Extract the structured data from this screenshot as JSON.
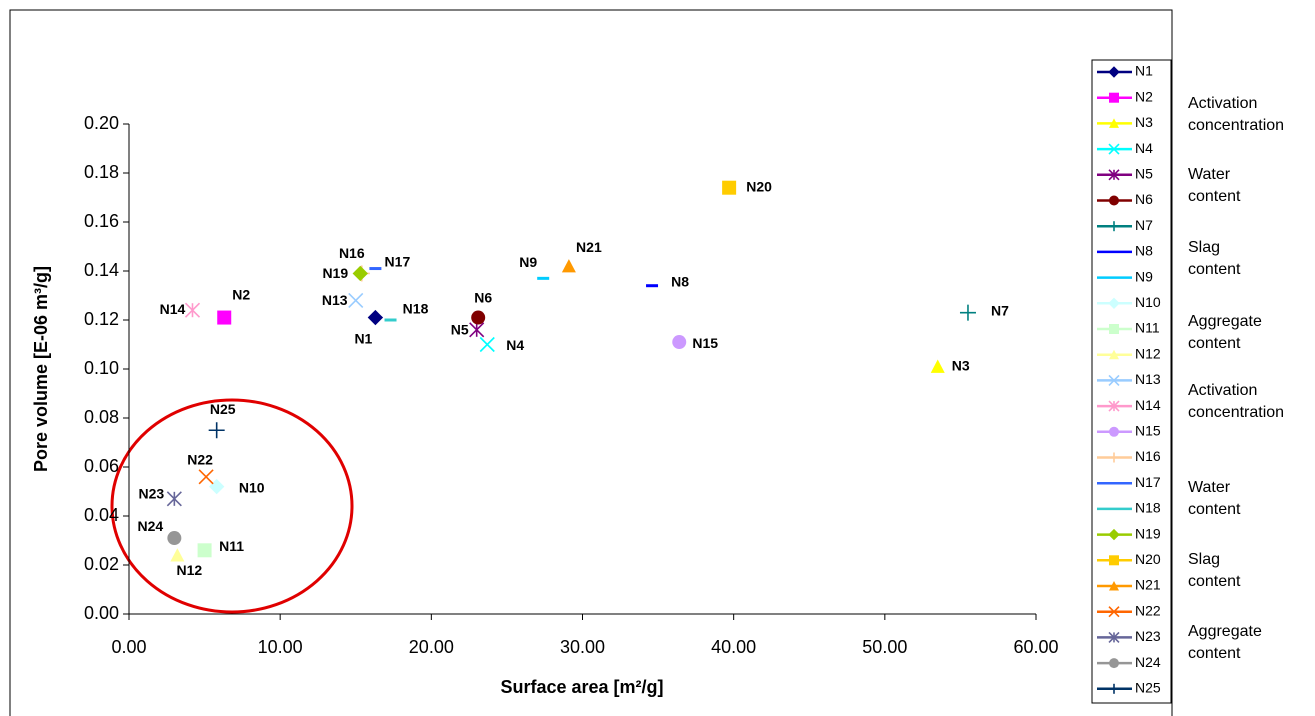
{
  "chart_data": {
    "type": "scatter",
    "xlabel": "Surface area [m²/g]",
    "ylabel": "Pore volume [E-06 m³/g]",
    "xlim": [
      0,
      60
    ],
    "ylim": [
      0,
      0.2
    ],
    "xticks": [
      {
        "value": 0,
        "label": "0.00"
      },
      {
        "value": 10,
        "label": "10.00"
      },
      {
        "value": 20,
        "label": "20.00"
      },
      {
        "value": 30,
        "label": "30.00"
      },
      {
        "value": 40,
        "label": "40.00"
      },
      {
        "value": 50,
        "label": "50.00"
      },
      {
        "value": 60,
        "label": "60.00"
      }
    ],
    "yticks": [
      {
        "value": 0,
        "label": "0.00"
      },
      {
        "value": 0.02,
        "label": "0.02"
      },
      {
        "value": 0.04,
        "label": "0.04"
      },
      {
        "value": 0.06,
        "label": "0.06"
      },
      {
        "value": 0.08,
        "label": "0.08"
      },
      {
        "value": 0.1,
        "label": "0.10"
      },
      {
        "value": 0.12,
        "label": "0.12"
      },
      {
        "value": 0.14,
        "label": "0.14"
      },
      {
        "value": 0.16,
        "label": "0.16"
      },
      {
        "value": 0.18,
        "label": "0.18"
      },
      {
        "value": 0.2,
        "label": "0.20"
      }
    ],
    "grid": false,
    "legend": "right",
    "series": [
      {
        "name": "N1",
        "color": "#000080",
        "marker": "diamond",
        "x": [
          16.3
        ],
        "values": [
          0.121
        ]
      },
      {
        "name": "N2",
        "color": "#ff00ff",
        "marker": "square",
        "x": [
          6.3
        ],
        "values": [
          0.121
        ]
      },
      {
        "name": "N3",
        "color": "#ffff00",
        "marker": "triangle",
        "x": [
          53.5
        ],
        "values": [
          0.101
        ]
      },
      {
        "name": "N4",
        "color": "#00ffff",
        "marker": "x",
        "x": [
          23.7
        ],
        "values": [
          0.11
        ]
      },
      {
        "name": "N5",
        "color": "#800080",
        "marker": "star",
        "x": [
          23.0
        ],
        "values": [
          0.116
        ]
      },
      {
        "name": "N6",
        "color": "#800000",
        "marker": "circle",
        "x": [
          23.1
        ],
        "values": [
          0.121
        ]
      },
      {
        "name": "N7",
        "color": "#008080",
        "marker": "plus",
        "x": [
          55.5
        ],
        "values": [
          0.123
        ]
      },
      {
        "name": "N8",
        "color": "#0000ff",
        "marker": "dash",
        "x": [
          34.6
        ],
        "values": [
          0.134
        ]
      },
      {
        "name": "N9",
        "color": "#00ccff",
        "marker": "dash",
        "x": [
          27.4
        ],
        "values": [
          0.137
        ]
      },
      {
        "name": "N10",
        "color": "#ccffff",
        "marker": "diamond",
        "x": [
          5.8
        ],
        "values": [
          0.052
        ]
      },
      {
        "name": "N11",
        "color": "#ccffcc",
        "marker": "square",
        "x": [
          5.0
        ],
        "values": [
          0.026
        ]
      },
      {
        "name": "N12",
        "color": "#ffff99",
        "marker": "triangle",
        "x": [
          3.2
        ],
        "values": [
          0.024
        ]
      },
      {
        "name": "N13",
        "color": "#99ccff",
        "marker": "x",
        "x": [
          15.0
        ],
        "values": [
          0.128
        ]
      },
      {
        "name": "N14",
        "color": "#ff99cc",
        "marker": "star",
        "x": [
          4.2
        ],
        "values": [
          0.124
        ]
      },
      {
        "name": "N15",
        "color": "#cc99ff",
        "marker": "circle",
        "x": [
          36.4
        ],
        "values": [
          0.111
        ]
      },
      {
        "name": "N16",
        "color": "#ffcc99",
        "marker": "plus",
        "x": [
          15.4
        ],
        "values": [
          0.139
        ]
      },
      {
        "name": "N17",
        "color": "#3366ff",
        "marker": "dash",
        "x": [
          16.3
        ],
        "values": [
          0.141
        ]
      },
      {
        "name": "N18",
        "color": "#33cccc",
        "marker": "dash",
        "x": [
          17.3
        ],
        "values": [
          0.12
        ]
      },
      {
        "name": "N19",
        "color": "#99cc00",
        "marker": "diamond",
        "x": [
          15.3
        ],
        "values": [
          0.139
        ]
      },
      {
        "name": "N20",
        "color": "#ffcc00",
        "marker": "square",
        "x": [
          39.7
        ],
        "values": [
          0.174
        ]
      },
      {
        "name": "N21",
        "color": "#ff9900",
        "marker": "triangle",
        "x": [
          29.1
        ],
        "values": [
          0.142
        ]
      },
      {
        "name": "N22",
        "color": "#ff6600",
        "marker": "x",
        "x": [
          5.1
        ],
        "values": [
          0.056
        ]
      },
      {
        "name": "N23",
        "color": "#666699",
        "marker": "star",
        "x": [
          3.0
        ],
        "values": [
          0.047
        ]
      },
      {
        "name": "N24",
        "color": "#969696",
        "marker": "circle",
        "x": [
          3.0
        ],
        "values": [
          0.031
        ]
      },
      {
        "name": "N25",
        "color": "#003366",
        "marker": "plus",
        "x": [
          5.8
        ],
        "values": [
          0.075
        ]
      }
    ],
    "annotations": [
      [
        "Activation",
        "concentration"
      ],
      [
        "Water",
        "content"
      ],
      [
        "Slag",
        "content"
      ],
      [
        "Aggregate",
        "content"
      ],
      [
        "Activation",
        "concentration"
      ],
      [
        "Water",
        "content"
      ],
      [
        "Slag",
        "content"
      ],
      [
        "Aggregate",
        "content"
      ]
    ]
  }
}
